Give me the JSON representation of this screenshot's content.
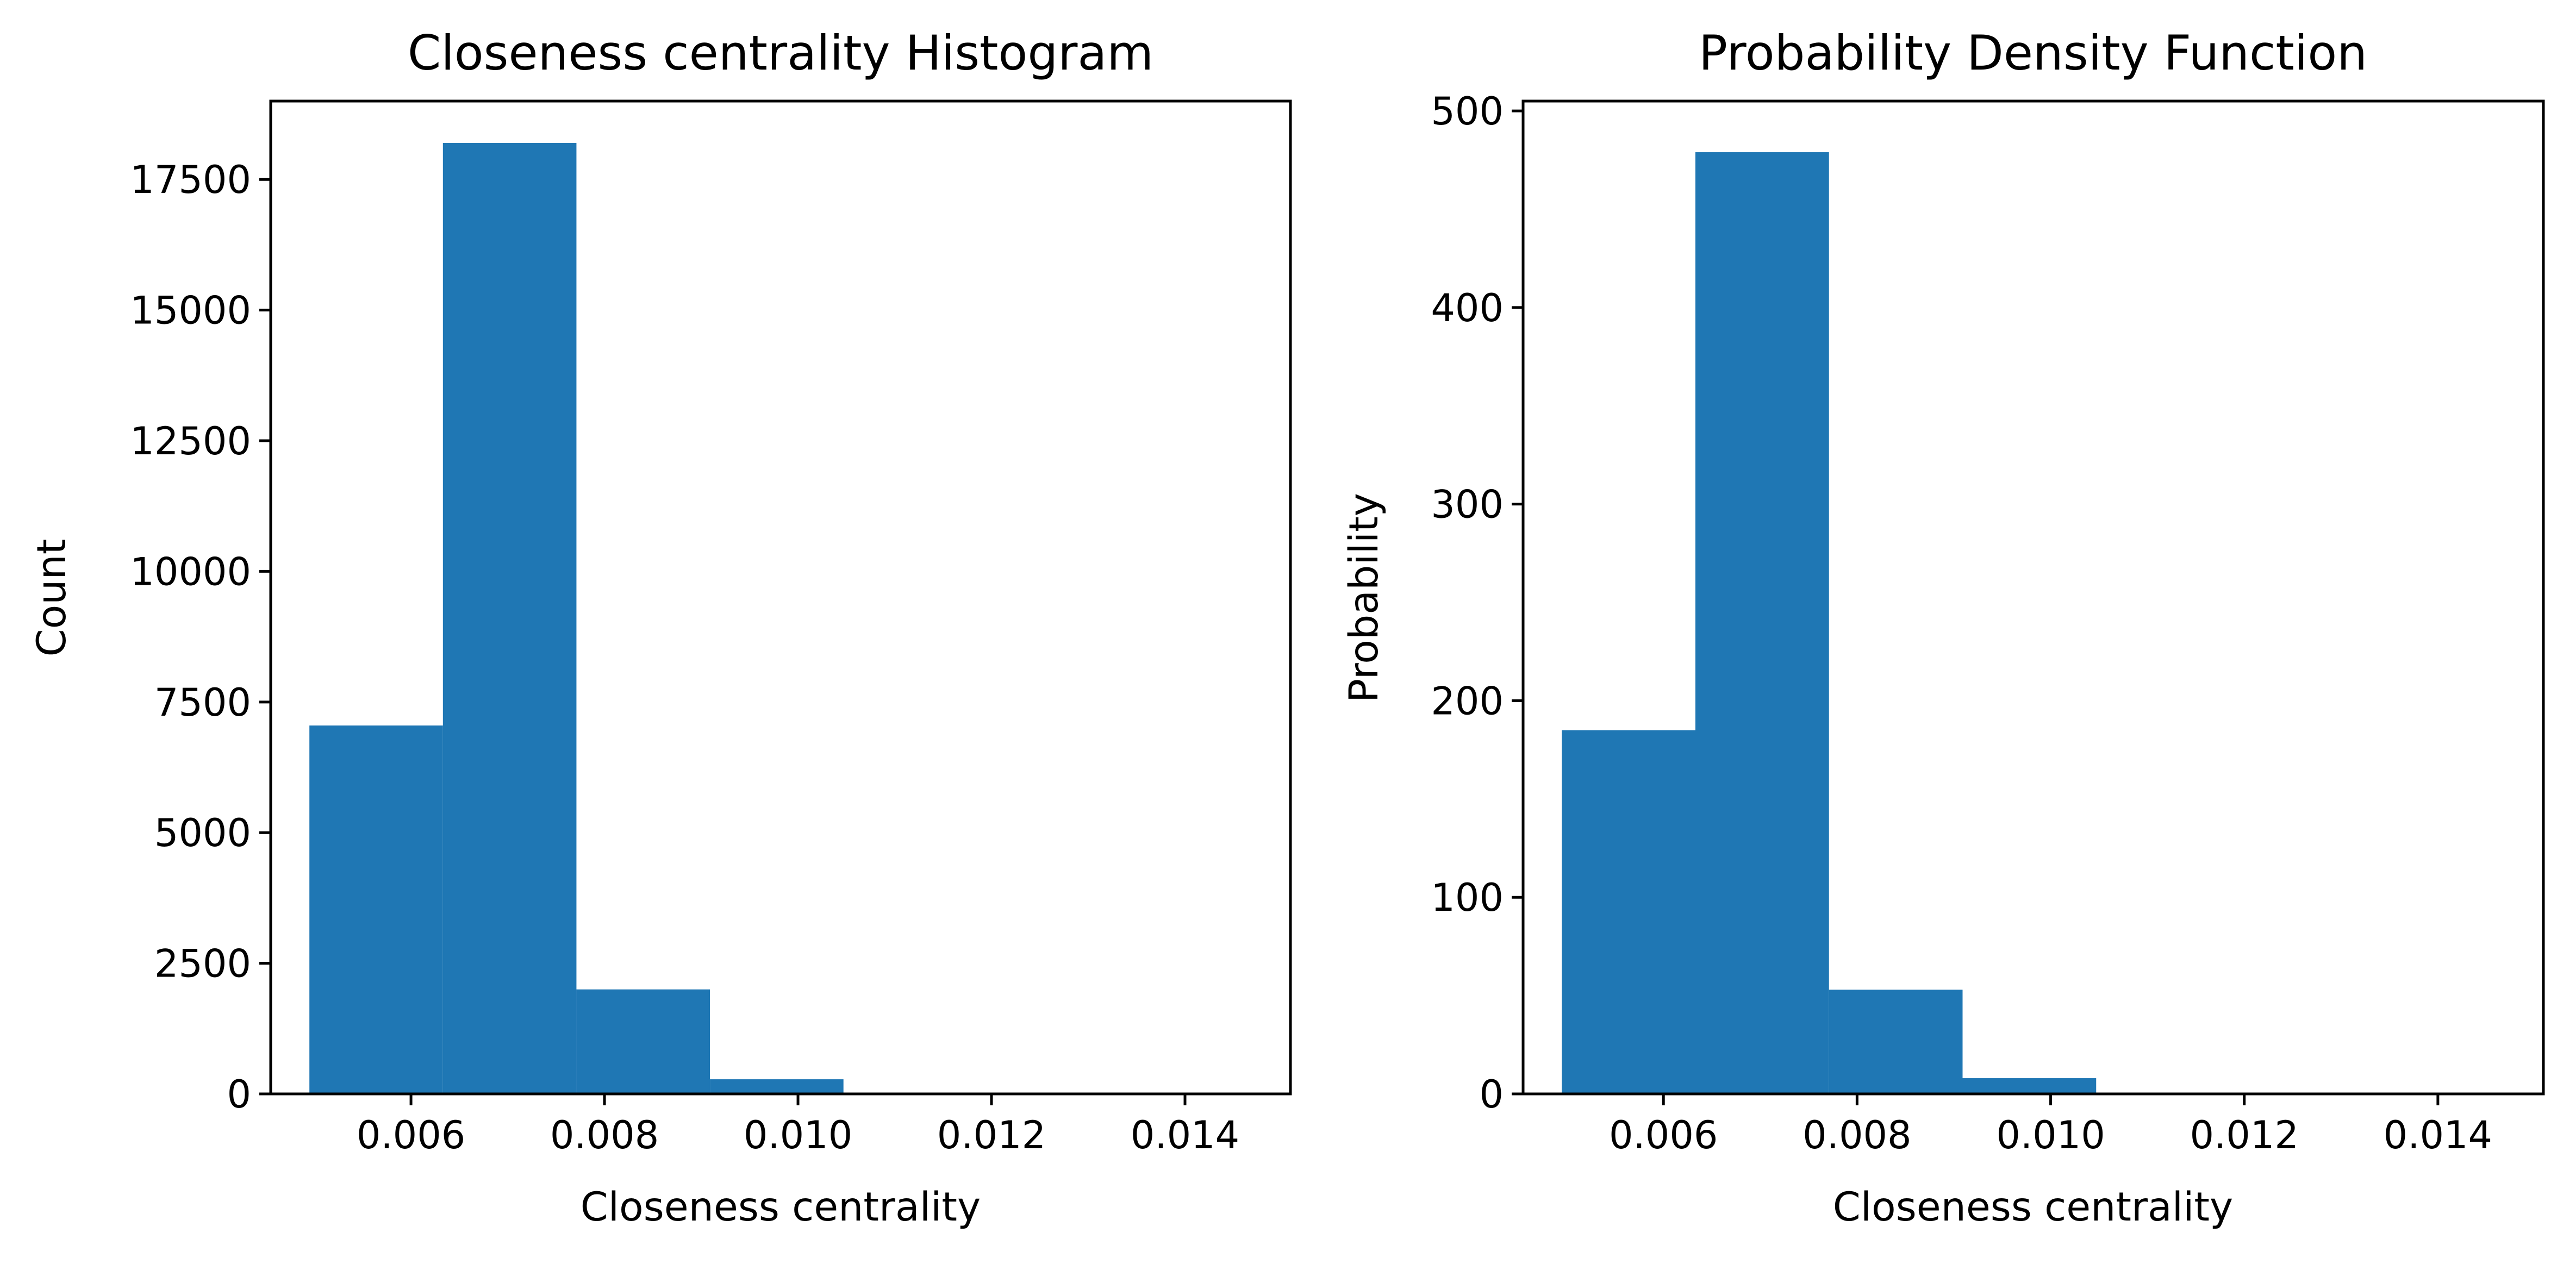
{
  "chart_data": [
    {
      "type": "bar",
      "title": "Closeness centrality Histogram",
      "xlabel": "Closeness centrality",
      "ylabel": "Count",
      "xlim": [
        0.00455,
        0.01509
      ],
      "ylim": [
        0,
        19000
      ],
      "xticks": [
        "0.006",
        "0.008",
        "0.010",
        "0.012",
        "0.014"
      ],
      "xtick_values": [
        0.006,
        0.008,
        0.01,
        0.012,
        0.014
      ],
      "yticks": [
        "0",
        "2500",
        "5000",
        "7500",
        "10000",
        "12500",
        "15000",
        "17500"
      ],
      "ytick_values": [
        0,
        2500,
        5000,
        7500,
        10000,
        12500,
        15000,
        17500
      ],
      "bin_edges": [
        0.00495,
        0.00633,
        0.00771,
        0.00909,
        0.01047,
        0.01185,
        0.01323,
        0.01461
      ],
      "values": [
        7050,
        18200,
        2000,
        280,
        0,
        0,
        0
      ],
      "color": "#1f77b4",
      "grid": false
    },
    {
      "type": "bar",
      "title": "Probability Density Function",
      "xlabel": "Closeness centrality",
      "ylabel": "Probability",
      "xlim": [
        0.00455,
        0.01509
      ],
      "ylim": [
        0,
        505
      ],
      "xticks": [
        "0.006",
        "0.008",
        "0.010",
        "0.012",
        "0.014"
      ],
      "xtick_values": [
        0.006,
        0.008,
        0.01,
        0.012,
        0.014
      ],
      "yticks": [
        "0",
        "100",
        "200",
        "300",
        "400",
        "500"
      ],
      "ytick_values": [
        0,
        100,
        200,
        300,
        400,
        500
      ],
      "bin_edges": [
        0.00495,
        0.00633,
        0.00771,
        0.00909,
        0.01047,
        0.01185,
        0.01323,
        0.01461
      ],
      "values": [
        185,
        479,
        53,
        8,
        0,
        0,
        0
      ],
      "color": "#1f77b4",
      "grid": false
    }
  ]
}
